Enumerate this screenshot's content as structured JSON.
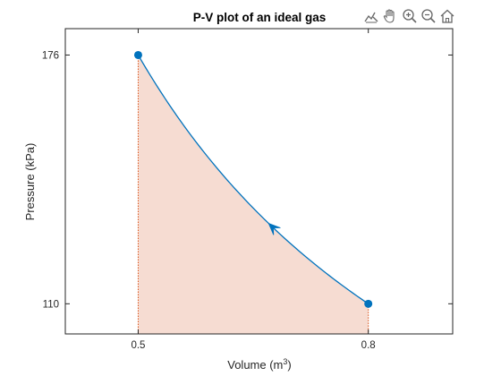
{
  "chart_data": {
    "type": "line",
    "title": "P-V plot of an ideal gas",
    "xlabel": "Volume  (m",
    "xlabel_superscript": "3",
    "xlabel_suffix": ")",
    "ylabel": "Pressure (kPa)",
    "xlim": [
      0.405,
      0.91
    ],
    "ylim": [
      102,
      183
    ],
    "xticks": [
      0.5,
      0.8
    ],
    "xtick_labels": [
      "0.5",
      "0.8"
    ],
    "yticks": [
      110,
      176
    ],
    "ytick_labels": [
      "110",
      "176"
    ],
    "grid": false,
    "series": [
      {
        "curve": "P*V = const",
        "x": [
          0.5,
          0.55,
          0.6,
          0.65,
          0.7,
          0.75,
          0.8
        ],
        "y": [
          176,
          160,
          146.7,
          135.4,
          125.7,
          117.3,
          110
        ],
        "color": "#0072BD",
        "endpoint_markers": true,
        "direction_arrow": "from x=0.8 toward x=0.5"
      }
    ],
    "shaded_area": {
      "under_curve": true,
      "x_range": [
        0.5,
        0.8
      ],
      "fill_color": "#F6DCD2",
      "boundary_line_color": "#D95319",
      "boundary_line_style": "dotted"
    }
  },
  "toolbar": {
    "buttons": [
      {
        "icon": "brush-icon",
        "label": "brush"
      },
      {
        "icon": "pan-hand-icon",
        "label": "pan"
      },
      {
        "icon": "zoom-in-icon",
        "label": "zoom in"
      },
      {
        "icon": "zoom-out-icon",
        "label": "zoom out"
      },
      {
        "icon": "home-icon",
        "label": "restore view"
      }
    ]
  }
}
